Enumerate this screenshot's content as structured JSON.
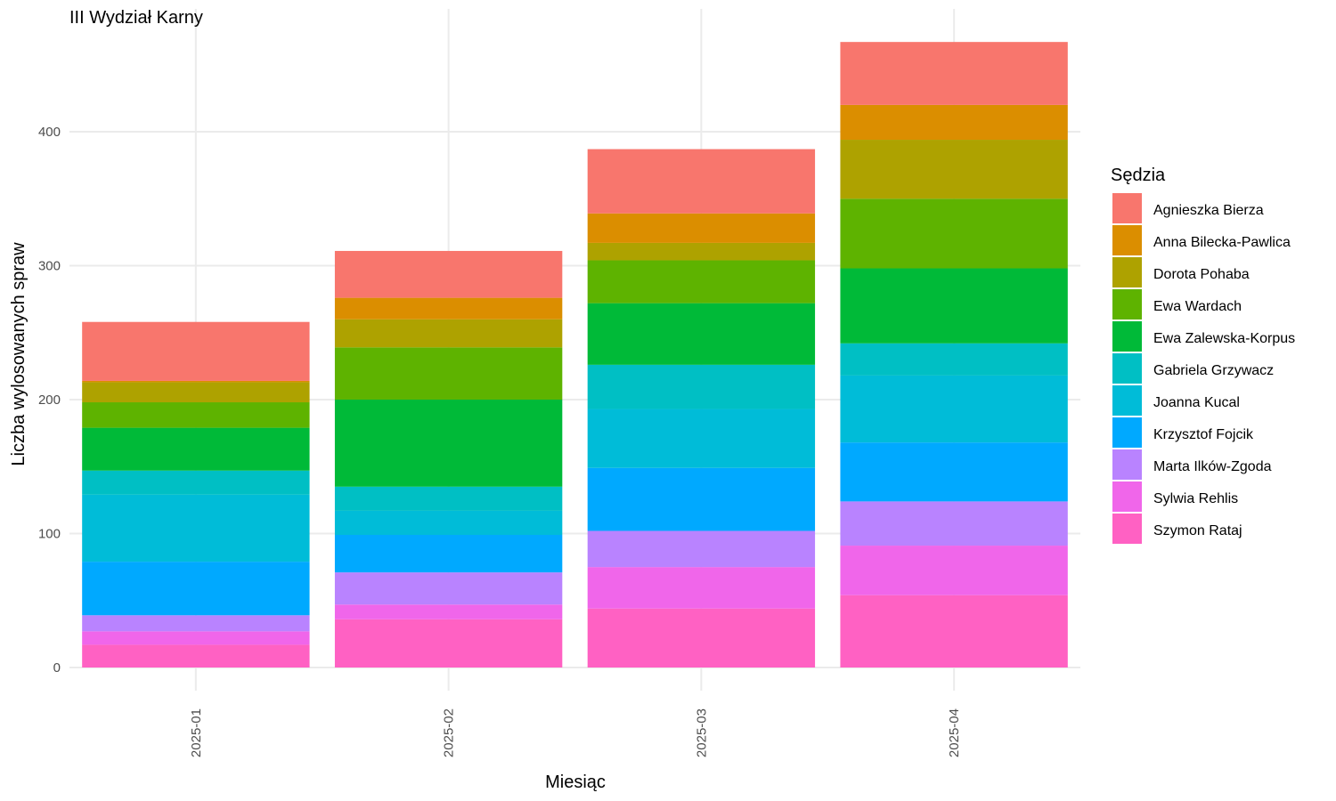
{
  "chart_data": {
    "type": "bar",
    "stacked": true,
    "title": "III Wydział Karny",
    "xlabel": "Miesiąc",
    "ylabel": "Liczba wylosowanych spraw",
    "categories": [
      "2025-01",
      "2025-02",
      "2025-03",
      "2025-04"
    ],
    "yticks": [
      0,
      100,
      200,
      300,
      400
    ],
    "ylim": [
      -17,
      485
    ],
    "grid": true,
    "legend_title": "Sędzia",
    "legend_position": "right",
    "series": [
      {
        "name": "Szymon Rataj",
        "color": "#FF61C3",
        "values": [
          17,
          36,
          44,
          54
        ]
      },
      {
        "name": "Sylwia Rehlis",
        "color": "#F066EA",
        "values": [
          10,
          11,
          31,
          37
        ]
      },
      {
        "name": "Marta Ilków-Zgoda",
        "color": "#B983FF",
        "values": [
          12,
          24,
          27,
          33
        ]
      },
      {
        "name": "Krzysztof Fojcik",
        "color": "#00A9FF",
        "values": [
          40,
          28,
          47,
          44
        ]
      },
      {
        "name": "Joanna Kucal",
        "color": "#00BCD8",
        "values": [
          50,
          18,
          44,
          50
        ]
      },
      {
        "name": "Gabriela Grzywacz",
        "color": "#00BFC4",
        "values": [
          18,
          18,
          33,
          24
        ]
      },
      {
        "name": "Ewa Zalewska-Korpus",
        "color": "#00BA38",
        "values": [
          32,
          65,
          46,
          56
        ]
      },
      {
        "name": "Ewa Wardach",
        "color": "#5EB300",
        "values": [
          19,
          39,
          32,
          52
        ]
      },
      {
        "name": "Dorota Pohaba",
        "color": "#AEA200",
        "values": [
          15,
          21,
          13,
          44
        ]
      },
      {
        "name": "Anna Bilecka-Pawlica",
        "color": "#DB8E00",
        "values": [
          1,
          16,
          22,
          26
        ]
      },
      {
        "name": "Agnieszka Bierza",
        "color": "#F8766D",
        "values": [
          44,
          35,
          48,
          47
        ]
      }
    ],
    "legend_order": [
      "Agnieszka Bierza",
      "Anna Bilecka-Pawlica",
      "Dorota Pohaba",
      "Ewa Wardach",
      "Ewa Zalewska-Korpus",
      "Gabriela Grzywacz",
      "Joanna Kucal",
      "Krzysztof Fojcik",
      "Marta Ilków-Zgoda",
      "Sylwia Rehlis",
      "Szymon Rataj"
    ]
  }
}
